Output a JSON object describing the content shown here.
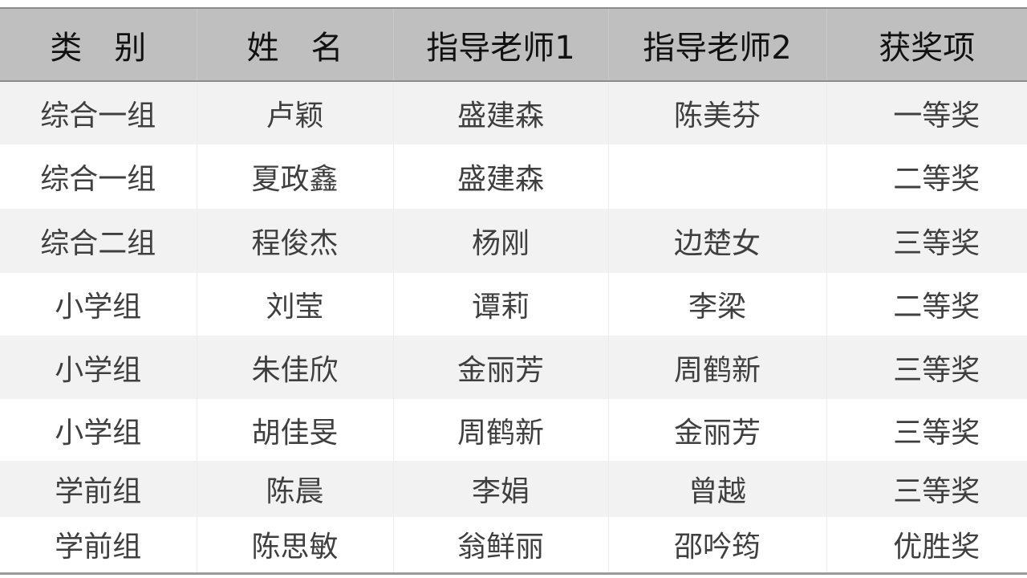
{
  "table": {
    "headers": [
      "类　别",
      "姓　名",
      "指导老师1",
      "指导老师2",
      "获奖项"
    ],
    "rows": [
      [
        "综合一组",
        "卢颖",
        "盛建森",
        "陈美芬",
        "一等奖"
      ],
      [
        "综合一组",
        "夏政鑫",
        "盛建森",
        "",
        "二等奖"
      ],
      [
        "综合二组",
        "程俊杰",
        "杨刚",
        "边楚女",
        "三等奖"
      ],
      [
        "小学组",
        "刘莹",
        "谭莉",
        "李梁",
        "二等奖"
      ],
      [
        "小学组",
        "朱佳欣",
        "金丽芳",
        "周鹤新",
        "三等奖"
      ],
      [
        "小学组",
        "胡佳旻",
        "周鹤新",
        "金丽芳",
        "三等奖"
      ],
      [
        "学前组",
        "陈晨",
        "李娟",
        "曾越",
        "三等奖"
      ],
      [
        "学前组",
        "陈思敏",
        "翁鲜丽",
        "邵吟筠",
        "优胜奖"
      ]
    ],
    "colors": {
      "header_bg": "#bfbfbf",
      "stripe_bg": "#f2f2f2",
      "text": "#3f3f3f"
    }
  }
}
